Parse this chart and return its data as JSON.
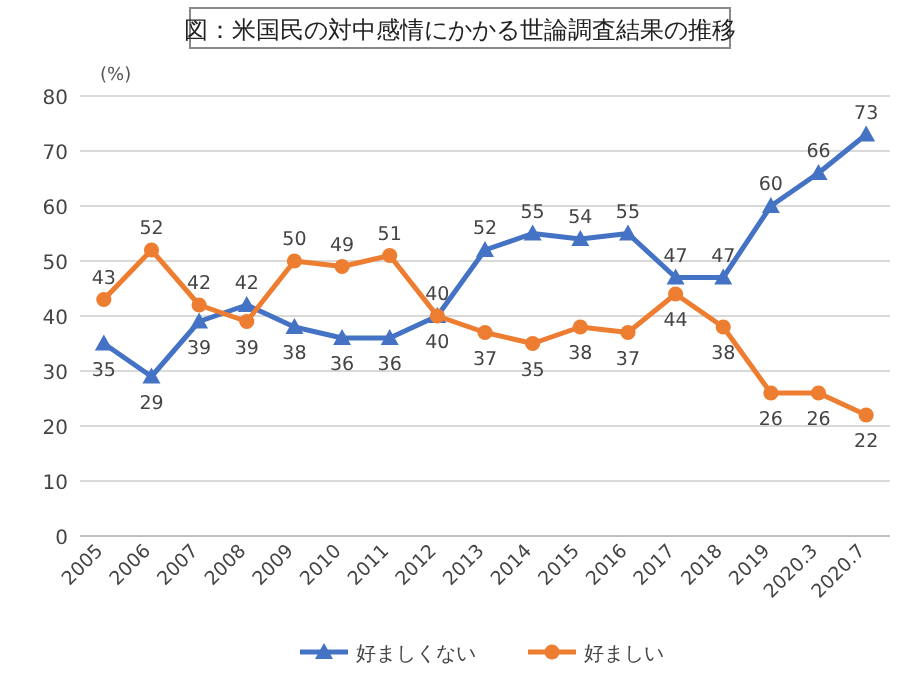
{
  "chart_data": {
    "type": "line",
    "title": "図：米国民の対中感情にかかる世論調査結果の推移",
    "ylabel": "(%)",
    "categories": [
      "2005",
      "2006",
      "2007",
      "2008",
      "2009",
      "2010",
      "2011",
      "2012",
      "2013",
      "2014",
      "2015",
      "2016",
      "2017",
      "2018",
      "2019",
      "2020.3",
      "2020.7"
    ],
    "series": [
      {
        "name": "好ましくない",
        "color": "#4472c4",
        "marker": "triangle",
        "values": [
          35,
          29,
          39,
          42,
          38,
          36,
          36,
          40,
          52,
          55,
          54,
          55,
          47,
          47,
          60,
          66,
          73
        ]
      },
      {
        "name": "好ましい",
        "color": "#ed7d31",
        "marker": "circle",
        "values": [
          43,
          52,
          42,
          39,
          50,
          49,
          51,
          40,
          37,
          35,
          38,
          37,
          44,
          38,
          26,
          26,
          22
        ]
      }
    ],
    "ylim": [
      0,
      80
    ],
    "yticks": [
      0,
      10,
      20,
      30,
      40,
      50,
      60,
      70,
      80
    ],
    "grid": "y",
    "legend": "bottom",
    "data_labels": true,
    "line_style": "solid"
  }
}
